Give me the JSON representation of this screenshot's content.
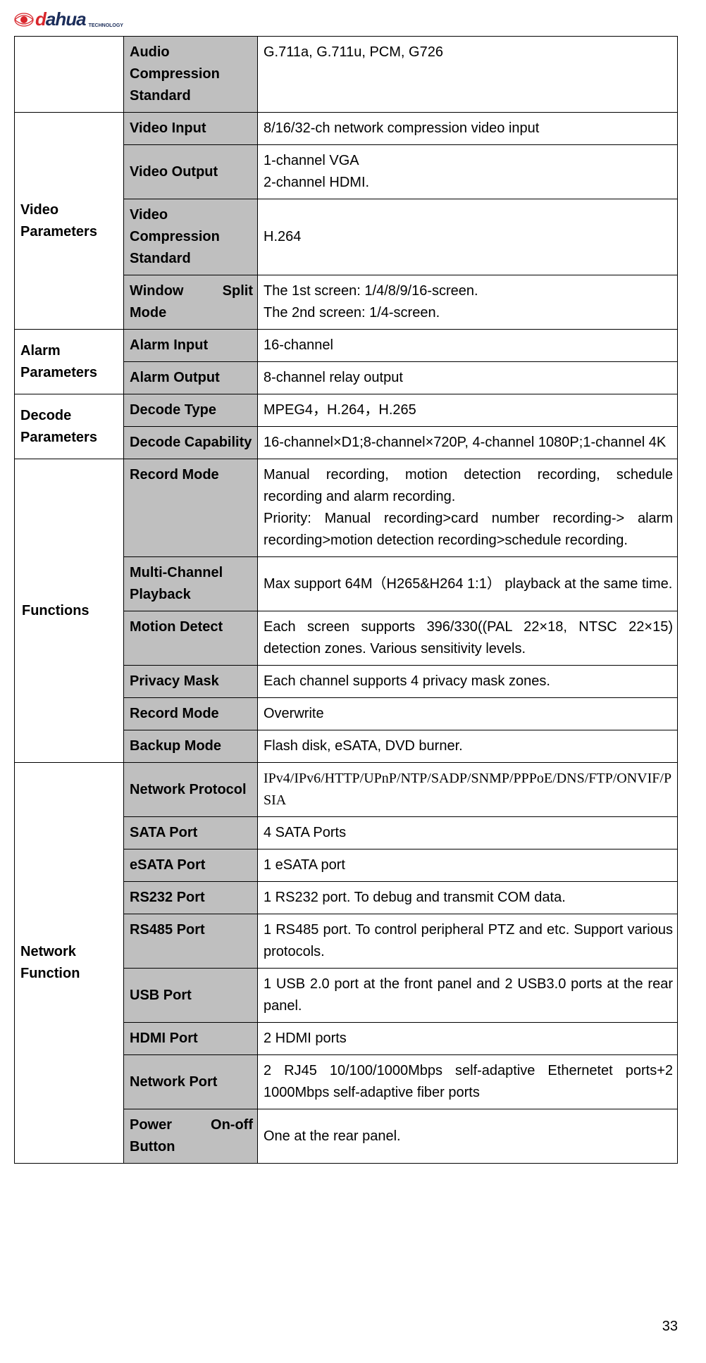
{
  "logo": {
    "brand_d": "d",
    "brand_ahua": "ahua",
    "sub": "TECHNOLOGY"
  },
  "rows": {
    "audio_comp_label": "Audio Compression Standard",
    "audio_comp_val": "G.711a, G.711u, PCM, G726",
    "video_params": "Video Parameters",
    "video_input_label": "Video Input",
    "video_input_val": "8/16/32-ch network compression video input",
    "video_output_label": "Video Output",
    "video_output_val": "1-channel VGA\n2-channel HDMI.",
    "video_comp_label": "Video Compression Standard",
    "video_comp_val": "H.264",
    "window_split_a": "Window",
    "window_split_b": "Split",
    "window_split_c": "Mode",
    "window_split_val": "The 1st screen: 1/4/8/9/16-screen.\nThe 2nd screen: 1/4-screen.",
    "alarm_params": "Alarm Parameters",
    "alarm_input_label": "Alarm Input",
    "alarm_input_val": "16-channel",
    "alarm_output_label": "Alarm Output",
    "alarm_output_val": "8-channel relay output",
    "decode_params": "Decode Parameters",
    "decode_type_label": "Decode Type",
    "decode_type_val": "MPEG4，H.264，H.265",
    "decode_cap_label": "Decode Capability",
    "decode_cap_val": "16-channel×D1;8-channel×720P, 4-channel 1080P;1-channel 4K",
    "functions": "Functions",
    "record_mode_label": "Record Mode",
    "record_mode_val": "Manual recording, motion detection recording, schedule recording and alarm recording.\nPriority: Manual recording>card number recording-> alarm recording>motion detection recording>schedule recording.",
    "multi_playback_label": "Multi-Channel Playback",
    "multi_playback_val": "Max support 64M（H265&H264 1:1）  playback at the same time.",
    "motion_detect_label": "Motion Detect",
    "motion_detect_val": "Each screen supports 396/330((PAL 22×18, NTSC 22×15) detection zones. Various sensitivity levels.",
    "privacy_mask_label": "Privacy Mask",
    "privacy_mask_val": "Each channel supports 4 privacy mask zones.",
    "record_mode2_label": "Record Mode",
    "record_mode2_val": "Overwrite",
    "backup_mode_label": "Backup Mode",
    "backup_mode_val": "Flash disk, eSATA, DVD burner.",
    "network_function": "Network Function",
    "net_protocol_label": "Network Protocol",
    "net_protocol_val": "IPv4/IPv6/HTTP/UPnP/NTP/SADP/SNMP/PPPoE/DNS/FTP/ONVIF/PSIA",
    "sata_label": "SATA Port",
    "sata_val": "4 SATA Ports",
    "esata_label": "eSATA Port",
    "esata_val": "1 eSATA port",
    "rs232_label": "RS232 Port",
    "rs232_val": "1 RS232 port. To debug and transmit COM data.",
    "rs485_label": "RS485 Port",
    "rs485_val": "1 RS485 port. To control peripheral PTZ and etc. Support various protocols.",
    "usb_label": "USB Port",
    "usb_val": "1 USB 2.0 port at the front panel and 2 USB3.0 ports at the rear panel.",
    "hdmi_label": "HDMI Port",
    "hdmi_val": "2 HDMI ports",
    "netport_label": "Network Port",
    "netport_val": "2 RJ45 10/100/1000Mbps self-adaptive Ethernetet ports+2 1000Mbps self-adaptive fiber ports",
    "power_a": "Power",
    "power_b": "On-off",
    "power_c": "Button",
    "power_val": "One at the rear panel."
  },
  "page_number": "33"
}
